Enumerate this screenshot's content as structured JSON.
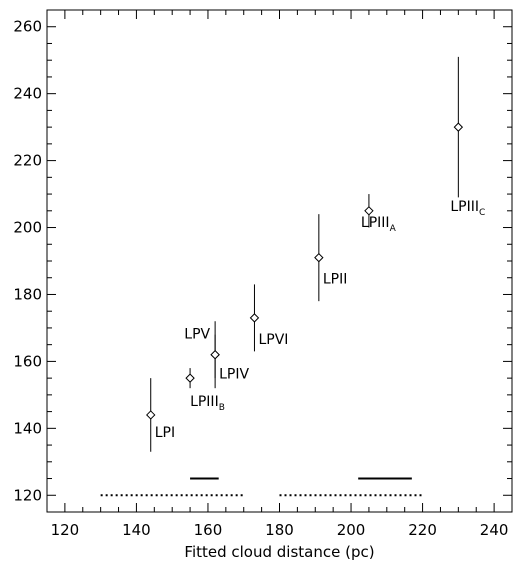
{
  "chart_data": {
    "type": "scatter",
    "title": "",
    "xlabel": "Fitted cloud distance (pc)",
    "ylabel": "",
    "xlim": [
      115,
      245
    ],
    "ylim": [
      115,
      265
    ],
    "xticks": [
      120,
      140,
      160,
      180,
      200,
      220,
      240
    ],
    "yticks": [
      120,
      140,
      160,
      180,
      200,
      220,
      240,
      260
    ],
    "xtick_labels": [
      "120",
      "140",
      "160",
      "180",
      "200",
      "220",
      "240"
    ],
    "ytick_labels": [
      "120",
      "140",
      "160",
      "180",
      "200",
      "220",
      "240",
      "260"
    ],
    "grid": false,
    "marker": "diamond",
    "points": [
      {
        "label": "LPI",
        "sub": "",
        "x": 144,
        "y": 144,
        "y_low": 133,
        "y_high": 155
      },
      {
        "label": "LPIII",
        "sub": "B",
        "x": 155,
        "y": 155,
        "y_low": 152,
        "y_high": 158
      },
      {
        "label": "LPV",
        "sub": "",
        "x": 162,
        "y": 162,
        "y_low": 155,
        "y_high": 172
      },
      {
        "label": "LPIV",
        "sub": "",
        "x": 162,
        "y": 162,
        "y_low": 152,
        "y_high": 168
      },
      {
        "label": "LPVI",
        "sub": "",
        "x": 173,
        "y": 173,
        "y_low": 163,
        "y_high": 183
      },
      {
        "label": "LPII",
        "sub": "",
        "x": 191,
        "y": 191,
        "y_low": 178,
        "y_high": 204
      },
      {
        "label": "LPIII",
        "sub": "A",
        "x": 205,
        "y": 205,
        "y_low": 200,
        "y_high": 210
      },
      {
        "label": "LPIII",
        "sub": "C",
        "x": 230,
        "y": 230,
        "y_low": 209,
        "y_high": 251
      }
    ],
    "ranges": [
      {
        "style": "dotted",
        "x": [
          130,
          170
        ],
        "y": 120
      },
      {
        "style": "solid",
        "x": [
          155,
          163
        ],
        "y": 125
      },
      {
        "style": "dotted",
        "x": [
          180,
          220
        ],
        "y": 120
      },
      {
        "style": "solid",
        "x": [
          202,
          217
        ],
        "y": 125
      }
    ]
  }
}
